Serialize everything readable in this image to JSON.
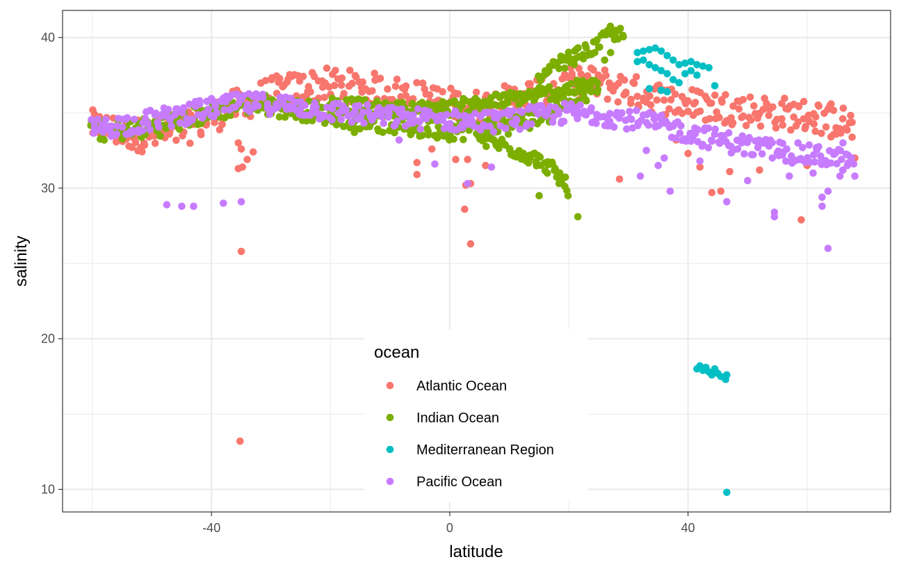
{
  "chart_data": {
    "type": "scatter",
    "title": "",
    "xlabel": "latitude",
    "ylabel": "salinity",
    "xlim": [
      -65,
      74
    ],
    "ylim": [
      8.5,
      41.8
    ],
    "x_ticks": [
      -40,
      0,
      40
    ],
    "x_tick_labels": [
      "-40",
      "0",
      "40"
    ],
    "y_ticks": [
      10,
      20,
      30,
      40
    ],
    "y_tick_labels": [
      "10",
      "20",
      "30",
      "40"
    ],
    "grid": true,
    "legend": {
      "title": "ocean",
      "placement": "inside-bottom-center"
    },
    "series": [
      {
        "name": "Atlantic Ocean",
        "color": "#F8766D",
        "trend": [
          [
            -60,
            34.1
          ],
          [
            -55,
            33.7
          ],
          [
            -50,
            33.4
          ],
          [
            -45,
            33.8
          ],
          [
            -40,
            34.7
          ],
          [
            -35,
            35.6
          ],
          [
            -30,
            36.3
          ],
          [
            -25,
            36.7
          ],
          [
            -20,
            36.9
          ],
          [
            -15,
            36.7
          ],
          [
            -10,
            36.4
          ],
          [
            -5,
            36.0
          ],
          [
            0,
            35.6
          ],
          [
            5,
            35.4
          ],
          [
            10,
            35.8
          ],
          [
            15,
            36.4
          ],
          [
            20,
            36.9
          ],
          [
            25,
            37.0
          ],
          [
            30,
            36.5
          ],
          [
            35,
            36.0
          ],
          [
            40,
            35.6
          ],
          [
            45,
            35.4
          ],
          [
            50,
            35.2
          ],
          [
            55,
            35.0
          ],
          [
            60,
            34.8
          ],
          [
            65,
            34.5
          ],
          [
            68,
            34.0
          ]
        ],
        "outliers": [
          [
            -35.5,
            31.3
          ],
          [
            -34.8,
            31.4
          ],
          [
            -34,
            31.9
          ],
          [
            -33,
            32.4
          ],
          [
            -35.5,
            33.0
          ],
          [
            -35,
            32.6
          ],
          [
            -35,
            25.8
          ],
          [
            -35.2,
            13.2
          ],
          [
            -5.5,
            31.7
          ],
          [
            -5.5,
            30.9
          ],
          [
            3,
            31.9
          ],
          [
            3.5,
            30.3
          ],
          [
            2.7,
            30.2
          ],
          [
            2.5,
            28.6
          ],
          [
            3.5,
            26.3
          ],
          [
            28.5,
            30.6
          ],
          [
            44,
            29.7
          ],
          [
            45.5,
            29.8
          ],
          [
            59,
            27.9
          ],
          [
            -3,
            32.6
          ],
          [
            1,
            31.9
          ],
          [
            6,
            31.5
          ],
          [
            40,
            32.3
          ],
          [
            42,
            31.4
          ],
          [
            47,
            31.1
          ],
          [
            52,
            31.2
          ],
          [
            60,
            31.5
          ],
          [
            66,
            31.2
          ],
          [
            68,
            32.0
          ],
          [
            38,
            33.2
          ],
          [
            64,
            33.4
          ]
        ]
      },
      {
        "name": "Indian Ocean",
        "color": "#7CAE00",
        "trend": [
          [
            -60,
            33.8
          ],
          [
            -55,
            33.9
          ],
          [
            -50,
            34.0
          ],
          [
            -45,
            34.5
          ],
          [
            -40,
            35.1
          ],
          [
            -35,
            35.6
          ],
          [
            -30,
            35.5
          ],
          [
            -25,
            35.2
          ],
          [
            -20,
            34.9
          ],
          [
            -15,
            34.6
          ],
          [
            -10,
            34.3
          ],
          [
            -5,
            34.0
          ],
          [
            0,
            33.9
          ],
          [
            5,
            33.9
          ],
          [
            10,
            34.2
          ],
          [
            15,
            34.8
          ],
          [
            20,
            35.8
          ],
          [
            24,
            36.6
          ]
        ],
        "branches": [
          [
            [
              -20,
              35.6
            ],
            [
              -10,
              35.2
            ],
            [
              0,
              35.3
            ],
            [
              5,
              35.6
            ],
            [
              10,
              35.9
            ],
            [
              15,
              36.2
            ],
            [
              20,
              36.6
            ],
            [
              25,
              36.8
            ]
          ],
          [
            [
              5,
              33.3
            ],
            [
              10,
              32.7
            ],
            [
              15,
              31.8
            ],
            [
              18,
              31.0
            ],
            [
              20,
              29.9
            ]
          ],
          [
            [
              15,
              37.0
            ],
            [
              18,
              38.2
            ],
            [
              22,
              38.9
            ],
            [
              25,
              39.5
            ],
            [
              27,
              40.4
            ],
            [
              29,
              40.1
            ]
          ]
        ],
        "outliers": [
          [
            15,
            29.5
          ],
          [
            21.5,
            28.1
          ],
          [
            -16,
            33.7
          ],
          [
            26,
            38.5
          ],
          [
            27,
            39.0
          ]
        ]
      },
      {
        "name": "Mediterranean Region",
        "color": "#00BFC4",
        "points": [
          [
            31.5,
            39.0
          ],
          [
            32.5,
            39.1
          ],
          [
            33.5,
            39.2
          ],
          [
            34.5,
            39.3
          ],
          [
            35.5,
            39.1
          ],
          [
            36.5,
            38.8
          ],
          [
            37.5,
            38.5
          ],
          [
            38.5,
            38.2
          ],
          [
            39.5,
            38.3
          ],
          [
            40.5,
            38.4
          ],
          [
            41.5,
            38.2
          ],
          [
            42.5,
            38.1
          ],
          [
            43.5,
            38.0
          ],
          [
            31.5,
            38.4
          ],
          [
            32.5,
            38.5
          ],
          [
            33.5,
            38.2
          ],
          [
            34.5,
            38.0
          ],
          [
            35.5,
            37.8
          ],
          [
            36.5,
            37.6
          ],
          [
            37.5,
            37.2
          ],
          [
            38.5,
            37.0
          ],
          [
            39.5,
            37.6
          ],
          [
            40.5,
            37.8
          ],
          [
            41.5,
            37.5
          ],
          [
            33.5,
            36.6
          ],
          [
            35.5,
            36.5
          ],
          [
            36.5,
            36.4
          ],
          [
            44.5,
            36.8
          ],
          [
            41.5,
            18.0
          ],
          [
            42.5,
            17.9
          ],
          [
            43.0,
            18.1
          ],
          [
            43.5,
            17.8
          ],
          [
            44.0,
            17.6
          ],
          [
            45.0,
            17.7
          ],
          [
            45.5,
            17.5
          ],
          [
            46.5,
            17.6
          ],
          [
            46.3,
            17.3
          ],
          [
            42.0,
            18.2
          ],
          [
            44.5,
            18.0
          ],
          [
            46.5,
            9.8
          ]
        ]
      },
      {
        "name": "Pacific Ocean",
        "color": "#C77CFF",
        "trend": [
          [
            -60,
            33.9
          ],
          [
            -55,
            34.2
          ],
          [
            -50,
            34.5
          ],
          [
            -45,
            34.9
          ],
          [
            -40,
            35.3
          ],
          [
            -35,
            35.6
          ],
          [
            -30,
            35.6
          ],
          [
            -25,
            35.4
          ],
          [
            -20,
            35.1
          ],
          [
            -15,
            34.9
          ],
          [
            -10,
            34.7
          ],
          [
            -5,
            34.6
          ],
          [
            0,
            34.5
          ],
          [
            5,
            34.4
          ],
          [
            10,
            34.5
          ],
          [
            15,
            34.8
          ],
          [
            20,
            35.0
          ],
          [
            25,
            34.9
          ],
          [
            30,
            34.6
          ],
          [
            35,
            34.2
          ],
          [
            40,
            33.7
          ],
          [
            45,
            33.2
          ],
          [
            50,
            32.8
          ],
          [
            55,
            32.5
          ],
          [
            60,
            32.2
          ],
          [
            65,
            32.0
          ],
          [
            68,
            31.5
          ]
        ],
        "outliers": [
          [
            -47.5,
            28.9
          ],
          [
            -45,
            28.8
          ],
          [
            -43,
            28.8
          ],
          [
            -38,
            29.0
          ],
          [
            -35,
            29.1
          ],
          [
            -2.5,
            31.6
          ],
          [
            7,
            31.4
          ],
          [
            -8.5,
            33.2
          ],
          [
            32,
            30.8
          ],
          [
            37,
            29.8
          ],
          [
            46.5,
            29.1
          ],
          [
            54.5,
            28.4
          ],
          [
            54.5,
            28.1
          ],
          [
            62.5,
            29.4
          ],
          [
            62.5,
            28.8
          ],
          [
            63.5,
            29.8
          ],
          [
            63.5,
            26.0
          ],
          [
            65.5,
            30.8
          ],
          [
            33,
            32.5
          ],
          [
            35,
            31.5
          ],
          [
            42,
            31.8
          ],
          [
            50,
            30.5
          ],
          [
            57,
            30.8
          ],
          [
            61,
            31.0
          ],
          [
            68,
            30.8
          ],
          [
            66,
            33.0
          ],
          [
            50,
            33.1
          ],
          [
            56,
            32.4
          ],
          [
            36,
            32.0
          ],
          [
            3,
            30.3
          ]
        ]
      }
    ]
  }
}
